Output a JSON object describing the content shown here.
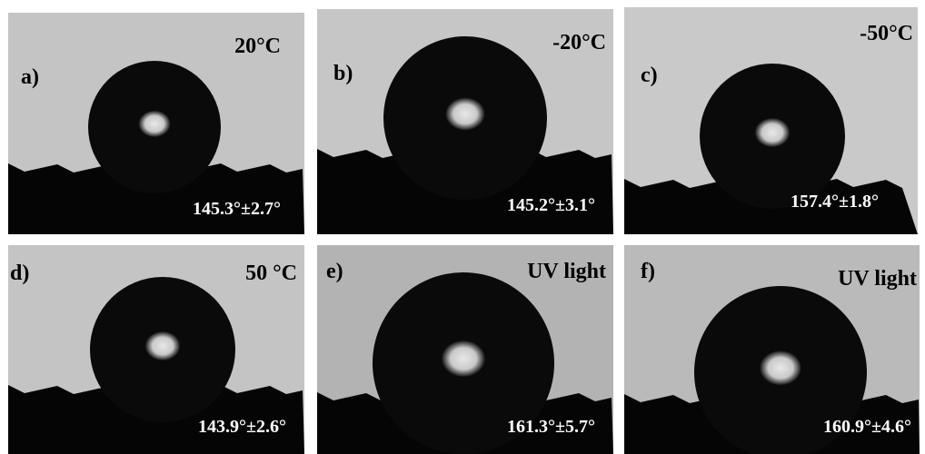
{
  "panels": [
    {
      "label": "a)",
      "condition": "20°C",
      "angle": "145.3°±2.7°"
    },
    {
      "label": "b)",
      "condition": "-20°C",
      "angle": "145.2°±3.1°"
    },
    {
      "label": "c)",
      "condition": "-50°C",
      "angle": "157.4°±1.8°"
    },
    {
      "label": "d)",
      "condition": "50 °C",
      "angle": "143.9°±2.6°"
    },
    {
      "label": "e)",
      "condition": "UV light",
      "angle": "161.3°±5.7°"
    },
    {
      "label": "f)",
      "condition": "UV light",
      "angle": "160.9°±4.6°"
    }
  ]
}
